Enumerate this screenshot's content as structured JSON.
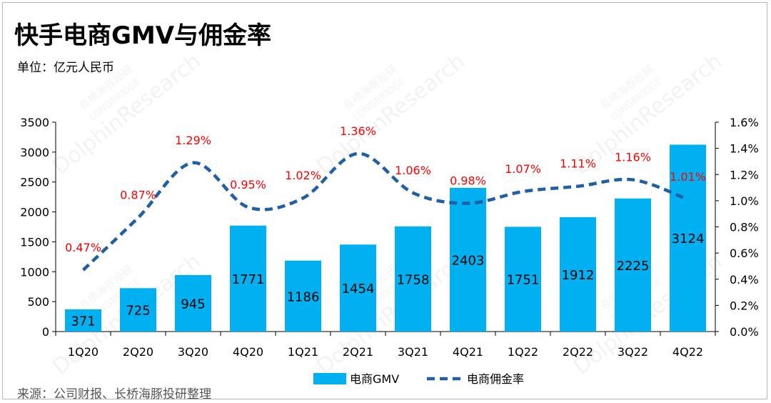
{
  "title": "快手电商GMV与佣金率",
  "unit_label": "单位：亿元人民币",
  "source": "来源：公司财报、长桥海豚投研整理",
  "colors": {
    "bar": "#00b0f0",
    "line": "#1f5fa6",
    "rate_label": "#ff0000"
  },
  "chart_data": {
    "type": "bar",
    "categories": [
      "1Q20",
      "2Q20",
      "3Q20",
      "4Q20",
      "1Q21",
      "2Q21",
      "3Q21",
      "4Q21",
      "1Q22",
      "2Q22",
      "3Q22",
      "4Q22"
    ],
    "series": [
      {
        "name": "电商GMV",
        "type": "bar",
        "axis": "left",
        "values": [
          371,
          725,
          945,
          1771,
          1186,
          1454,
          1758,
          2403,
          1751,
          1912,
          2225,
          3124
        ],
        "labels": [
          "371",
          "725",
          "945",
          "1771",
          "1186",
          "1454",
          "1758",
          "2403",
          "1751",
          "1912",
          "2225",
          "3124"
        ]
      },
      {
        "name": "电商佣金率",
        "type": "line",
        "style": "dashed",
        "axis": "right",
        "values": [
          0.47,
          0.87,
          1.29,
          0.95,
          1.02,
          1.36,
          1.06,
          0.98,
          1.07,
          1.11,
          1.16,
          1.01
        ],
        "labels": [
          "0.47%",
          "0.87%",
          "1.29%",
          "0.95%",
          "1.02%",
          "1.36%",
          "1.06%",
          "0.98%",
          "1.07%",
          "1.11%",
          "1.16%",
          "1.01%"
        ]
      }
    ],
    "y_left": {
      "ylim": [
        0,
        3500
      ],
      "ticks": [
        0,
        500,
        1000,
        1500,
        2000,
        2500,
        3000,
        3500
      ],
      "tick_labels": [
        "0",
        "500",
        "1000",
        "1500",
        "2000",
        "2500",
        "3000",
        "3500"
      ]
    },
    "y_right": {
      "ylim": [
        0,
        1.6
      ],
      "ticks": [
        0,
        0.2,
        0.4,
        0.6,
        0.8,
        1.0,
        1.2,
        1.4,
        1.6
      ],
      "tick_labels": [
        "0.0%",
        "0.2%",
        "0.4%",
        "0.6%",
        "0.8%",
        "1.0%",
        "1.2%",
        "1.4%",
        "1.6%"
      ]
    },
    "grid": false,
    "legend_position": "bottom-center"
  },
  "watermark": {
    "lines": [
      "長橋海豚投研",
      "LONGBRIDGE",
      "DolphinResearch"
    ]
  }
}
